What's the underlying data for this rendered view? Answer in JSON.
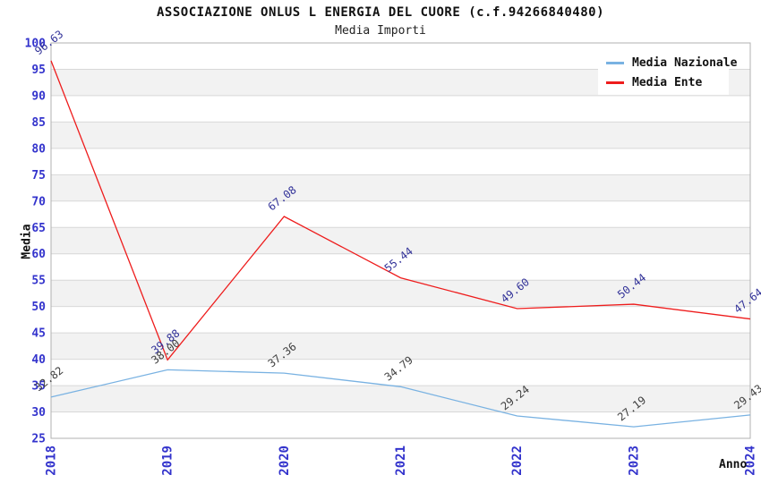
{
  "chart_data": {
    "type": "line",
    "title": "ASSOCIAZIONE ONLUS L ENERGIA DEL CUORE (c.f.94266840480)",
    "subtitle": "Media Importi",
    "xlabel": "Anno",
    "ylabel": "Media",
    "categories": [
      "2018",
      "2019",
      "2020",
      "2021",
      "2022",
      "2023",
      "2024"
    ],
    "series": [
      {
        "name": "Media Nazionale",
        "color": "#79b2e2",
        "label_color": "#404040",
        "values": [
          32.82,
          38.0,
          37.36,
          34.79,
          29.24,
          27.19,
          29.43
        ]
      },
      {
        "name": "Media Ente",
        "color": "#ee1c1c",
        "label_color": "#333399",
        "values": [
          96.63,
          39.88,
          67.08,
          55.44,
          49.6,
          50.44,
          47.64
        ]
      }
    ],
    "ylim": [
      25,
      100
    ],
    "ytick_step": 5,
    "grid": true,
    "legend_position": "top-right",
    "tick_label_color": "#3333cc",
    "grid_color": "#d8d8d8",
    "band_color": "#f2f2f2",
    "spine_color": "#b0b0b0"
  }
}
